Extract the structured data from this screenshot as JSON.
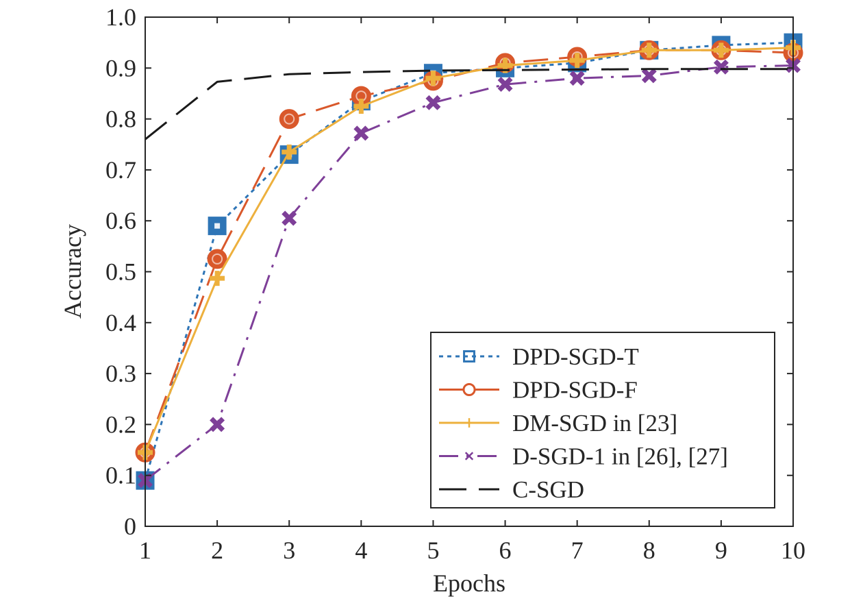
{
  "chart_data": {
    "type": "line",
    "xlabel": "Epochs",
    "ylabel": "Accuracy",
    "xlim": [
      1,
      10
    ],
    "ylim": [
      0,
      1
    ],
    "x": [
      1,
      2,
      3,
      4,
      5,
      6,
      7,
      8,
      9,
      10
    ],
    "x_tick_labels": [
      "1",
      "2",
      "3",
      "4",
      "5",
      "6",
      "7",
      "8",
      "9",
      "10"
    ],
    "y_ticks": [
      0,
      0.1,
      0.2,
      0.3,
      0.4,
      0.5,
      0.6,
      0.7,
      0.8,
      0.9,
      1.0
    ],
    "y_tick_labels": [
      "0",
      "0.1",
      "0.2",
      "0.3",
      "0.4",
      "0.5",
      "0.6",
      "0.7",
      "0.8",
      "0.9",
      "1.0"
    ],
    "grid": false,
    "legend_position": "bottom-right",
    "series": [
      {
        "name": "DPD-SGD-T",
        "values": [
          0.09,
          0.59,
          0.73,
          0.835,
          0.89,
          0.9,
          0.91,
          0.935,
          0.945,
          0.95
        ],
        "color": "#2E75B6",
        "line_style": "dotted",
        "marker": "square"
      },
      {
        "name": "DPD-SGD-F",
        "values": [
          0.145,
          0.525,
          0.8,
          0.845,
          0.875,
          0.91,
          0.922,
          0.935,
          0.935,
          0.93
        ],
        "color": "#D9582B",
        "line_style": "dashed",
        "marker": "circle"
      },
      {
        "name": "DM-SGD in [23]",
        "values": [
          0.145,
          0.487,
          0.735,
          0.825,
          0.88,
          0.905,
          0.915,
          0.935,
          0.935,
          0.94
        ],
        "color": "#EDB03D",
        "line_style": "solid",
        "marker": "plus"
      },
      {
        "name": "D-SGD-1 in [26], [27]",
        "values": [
          0.09,
          0.2,
          0.605,
          0.772,
          0.832,
          0.868,
          0.88,
          0.885,
          0.902,
          0.905
        ],
        "color": "#7E3F98",
        "line_style": "dashdot",
        "marker": "x"
      },
      {
        "name": "C-SGD",
        "values": [
          0.76,
          0.873,
          0.888,
          0.892,
          0.895,
          0.896,
          0.897,
          0.898,
          0.898,
          0.898
        ],
        "color": "#1A1A1A",
        "line_style": "longdash",
        "marker": "none"
      }
    ]
  }
}
